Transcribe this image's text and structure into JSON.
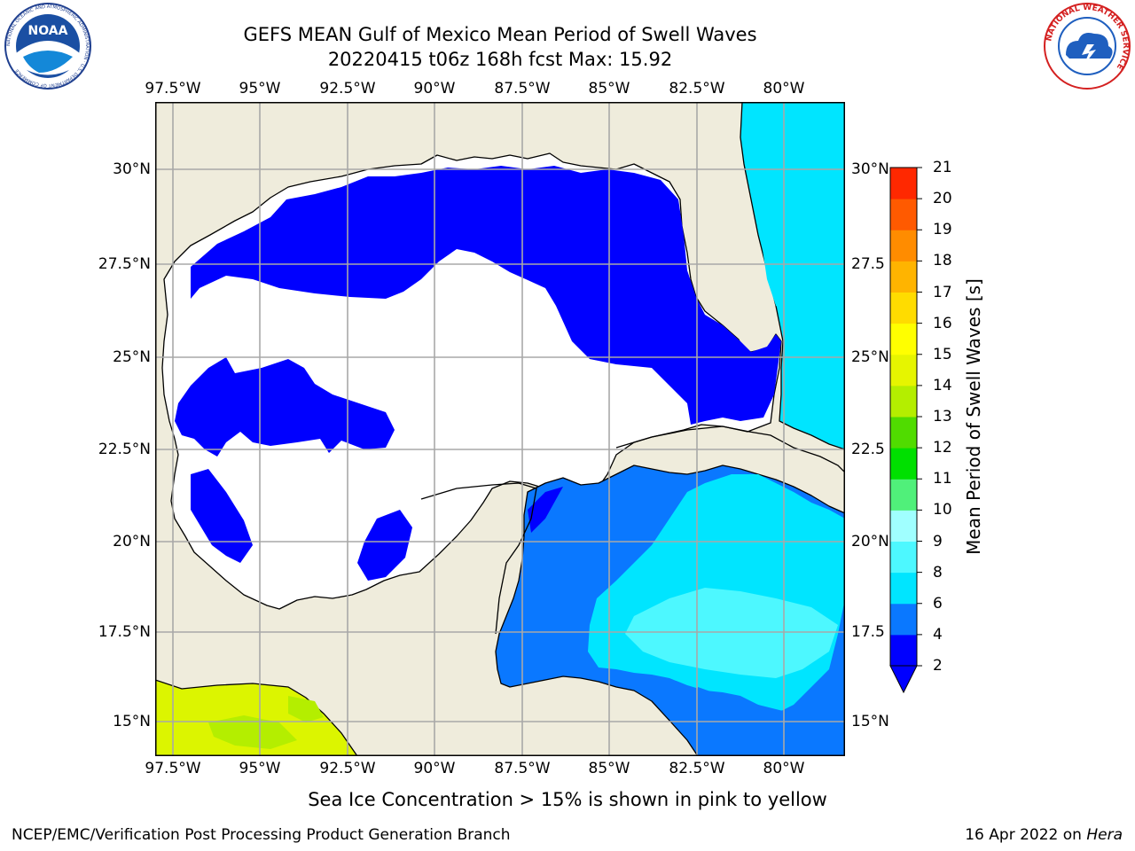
{
  "title": {
    "line1": "GEFS MEAN Gulf of Mexico Mean Period of Swell Waves",
    "line2": "20220415 t06z 168h fcst   Max: 15.92"
  },
  "logos": {
    "noaa": {
      "center_text": "NOAA",
      "ring_text": "NATIONAL OCEANIC AND ATMOSPHERIC ADMINISTRATION · U.S. DEPARTMENT OF COMMERCE"
    },
    "nws": {
      "ring_text": "NATIONAL WEATHER SERVICE"
    }
  },
  "axes": {
    "lon_labels": [
      "97.5°W",
      "95°W",
      "92.5°W",
      "90°W",
      "87.5°W",
      "85°W",
      "82.5°W",
      "80°W"
    ],
    "lat_labels_left": [
      "30°N",
      "27.5°N",
      "25°N",
      "22.5°N",
      "20°N",
      "17.5°N",
      "15°N"
    ],
    "lat_labels_right": [
      "30°N",
      "27.5",
      "25°N",
      "22.5",
      "20°N",
      "17.5",
      "15°N"
    ]
  },
  "colorbar": {
    "title": "Mean Period of Swell Waves [s]",
    "ticks": [
      "2",
      "4",
      "6",
      "8",
      "9",
      "10",
      "11",
      "12",
      "13",
      "14",
      "15",
      "16",
      "17",
      "18",
      "19",
      "20",
      "21"
    ],
    "colors": [
      "#0000ff",
      "#0a78ff",
      "#00e5ff",
      "#4df8ff",
      "#a0ffff",
      "#50f07a",
      "#00e000",
      "#50dc00",
      "#b4ee00",
      "#e6f500",
      "#ffff00",
      "#ffdc00",
      "#ffb400",
      "#ff8c00",
      "#ff5a00",
      "#ff2800",
      "#ff0000"
    ],
    "under_color": "#0000ff"
  },
  "map_colors": {
    "land": "#efecdc",
    "sea_low": "#0000ff",
    "sea_mid": "#0a78ff",
    "sea_high": "#00e5ff",
    "sea_higher": "#4df8ff",
    "pacific": "#dcf500"
  },
  "note": "Sea Ice Concentration > 15% is shown in pink to yellow",
  "footer": {
    "left": "NCEP/EMC/Verification Post Processing Product Generation Branch",
    "date": "16 Apr 2022 on",
    "host": "Hera"
  }
}
